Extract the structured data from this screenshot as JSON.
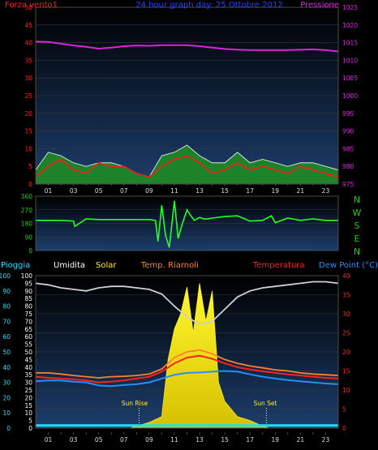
{
  "header": {
    "left_label": "Forza vento1",
    "title": "24 hour graph day:  25 Ottobre 2012",
    "right_label": "Pressione"
  },
  "wind_dir_labels": [
    "N",
    "W",
    "S",
    "E",
    "N"
  ],
  "legend": {
    "pioggia": "Pioggia",
    "umidita": "Umidita",
    "solar": "Solar",
    "temp_riarnoli": "Temp. Riarnoli",
    "temperatura": "Temperatura",
    "dew_point": "Dew Point (°C)"
  },
  "sun": {
    "rise_label": "Sun Rise",
    "set_label": "Sun Set"
  },
  "colors": {
    "wind_avg": "#ff1a1a",
    "gust_fill": "#1f8f1f",
    "pressure": "#e020e0",
    "wind_dir": "#22ff22",
    "humidity": "#d0d0d0",
    "solar": "#ffee22",
    "temp_riarnoli": "#ff8030",
    "temperatura": "#ff2020",
    "dew_point": "#2090ff",
    "rain": "#20e0ff",
    "pioggia_label": "#20e0ff",
    "umidita_label": "#ffffff",
    "solar_label": "#ffee22",
    "temp_riarnoli_label": "#ff8030",
    "temperatura_label": "#ff2020",
    "dew_label": "#2090ff"
  },
  "chart_data": [
    {
      "type": "line",
      "name": "wind_pressure",
      "title": "24 hour graph day:  25 Ottobre 2012",
      "x_ticks": [
        "01",
        "03",
        "05",
        "07",
        "09",
        "11",
        "13",
        "15",
        "17",
        "19",
        "21",
        "23"
      ],
      "y_left": {
        "label": "Forza vento1",
        "ticks": [
          0,
          5,
          10,
          15,
          20,
          25,
          30,
          35,
          40,
          45,
          50
        ],
        "ylim": [
          0,
          50
        ]
      },
      "y_right": {
        "label": "Pressione",
        "ticks": [
          975,
          980,
          985,
          990,
          995,
          1000,
          1005,
          1010,
          1015,
          1020,
          1025
        ],
        "ylim": [
          975,
          1025
        ]
      },
      "series": [
        {
          "key": "pressure",
          "axis": "right",
          "x": [
            0,
            1,
            2,
            3,
            4,
            5,
            6,
            7,
            8,
            9,
            10,
            11,
            12,
            13,
            14,
            15,
            16,
            17,
            18,
            19,
            20,
            21,
            22,
            23,
            24
          ],
          "values": [
            1015.3,
            1015.2,
            1014.7,
            1014.2,
            1013.8,
            1013.3,
            1013.6,
            1014.0,
            1014.2,
            1014.1,
            1014.3,
            1014.3,
            1014.3,
            1014.0,
            1013.6,
            1013.2,
            1013.0,
            1012.9,
            1012.9,
            1012.9,
            1012.9,
            1013.0,
            1013.1,
            1012.9,
            1012.5
          ]
        },
        {
          "key": "wind_avg",
          "axis": "left",
          "x": [
            0,
            1,
            2,
            3,
            4,
            5,
            6,
            7,
            8,
            9,
            10,
            11,
            12,
            13,
            14,
            15,
            16,
            17,
            18,
            19,
            20,
            21,
            22,
            23,
            24
          ],
          "values": [
            2,
            5,
            7,
            4,
            3,
            6,
            5,
            5,
            3,
            2,
            5,
            7,
            8,
            6,
            3,
            4,
            6,
            4,
            5,
            4,
            3,
            5,
            4,
            3,
            2
          ]
        },
        {
          "key": "wind_gust",
          "axis": "left",
          "x": [
            0,
            1,
            2,
            3,
            4,
            5,
            6,
            7,
            8,
            9,
            10,
            11,
            12,
            13,
            14,
            15,
            16,
            17,
            18,
            19,
            20,
            21,
            22,
            23,
            24
          ],
          "values": [
            4,
            9,
            8,
            6,
            5,
            6,
            6,
            5,
            3,
            2,
            8,
            9,
            11,
            8,
            6,
            6,
            9,
            6,
            7,
            6,
            5,
            6,
            6,
            5,
            4
          ]
        }
      ]
    },
    {
      "type": "line",
      "name": "wind_direction",
      "y_ticks": [
        0,
        90,
        180,
        270,
        360
      ],
      "ylim": [
        0,
        360
      ],
      "series": [
        {
          "key": "wind_dir",
          "x": [
            0,
            2,
            3,
            3.1,
            4,
            5,
            6,
            7,
            8,
            9,
            9.5,
            9.7,
            10,
            10.3,
            10.6,
            11,
            11.3,
            11.6,
            12,
            12.3,
            12.6,
            13,
            13.3,
            13.7,
            14,
            15,
            16,
            17,
            18,
            18.7,
            19,
            20,
            21,
            22,
            23,
            24
          ],
          "values": [
            200,
            200,
            195,
            160,
            210,
            205,
            205,
            205,
            205,
            205,
            200,
            60,
            300,
            100,
            20,
            330,
            80,
            170,
            270,
            230,
            200,
            220,
            210,
            210,
            215,
            225,
            230,
            195,
            200,
            230,
            185,
            215,
            200,
            210,
            200,
            200
          ]
        }
      ]
    },
    {
      "type": "line",
      "name": "temp_humidity_solar",
      "left_axis": {
        "label": "Pioggia",
        "ticks": [
          0,
          10,
          20,
          30,
          40,
          50,
          60,
          70,
          80,
          90,
          100
        ]
      },
      "hum_axis": {
        "label": "Umidita",
        "ticks": [
          0,
          5,
          10,
          15,
          20,
          25,
          30,
          35,
          40,
          45,
          50,
          55,
          60,
          65,
          70,
          75,
          80,
          85,
          90,
          95,
          100
        ]
      },
      "right_axis": {
        "label": "Dew Point (°C)",
        "ticks": [
          0,
          5,
          10,
          15,
          20,
          25,
          30,
          35,
          40
        ],
        "ylim": [
          0,
          40
        ]
      },
      "sun_rise_hour": 8.2,
      "sun_set_hour": 18.3,
      "series": [
        {
          "key": "humidity",
          "x": [
            0,
            1,
            2,
            3,
            4,
            5,
            6,
            7,
            8,
            9,
            10,
            11,
            12,
            13,
            14,
            15,
            16,
            17,
            18,
            19,
            20,
            21,
            22,
            23,
            24
          ],
          "values": [
            95,
            94,
            92,
            91,
            90,
            92,
            93,
            93,
            92,
            91,
            88,
            80,
            73,
            68,
            70,
            78,
            86,
            90,
            92,
            93,
            94,
            95,
            96,
            96,
            95
          ]
        },
        {
          "key": "temp_riarnoli",
          "x": [
            0,
            1,
            2,
            3,
            4,
            5,
            6,
            7,
            8,
            9,
            10,
            11,
            12,
            13,
            14,
            15,
            16,
            17,
            18,
            19,
            20,
            21,
            22,
            23,
            24
          ],
          "values": [
            14.5,
            14.5,
            14.2,
            13.8,
            13.5,
            13.2,
            13.5,
            13.6,
            13.8,
            14.2,
            15.5,
            18.5,
            20.0,
            20.5,
            19.5,
            18.0,
            17.0,
            16.3,
            15.8,
            15.3,
            15.0,
            14.5,
            14.2,
            14.0,
            13.8
          ]
        },
        {
          "key": "temperatura",
          "x": [
            0,
            1,
            2,
            3,
            4,
            5,
            6,
            7,
            8,
            9,
            10,
            11,
            12,
            13,
            14,
            15,
            16,
            17,
            18,
            19,
            20,
            21,
            22,
            23,
            24
          ],
          "values": [
            13.5,
            13.2,
            13.0,
            12.8,
            12.5,
            12.0,
            12.2,
            12.5,
            13.0,
            13.5,
            14.8,
            17.0,
            18.5,
            19.0,
            18.2,
            17.0,
            16.0,
            15.4,
            14.9,
            14.5,
            14.1,
            13.8,
            13.5,
            13.2,
            13.0
          ]
        },
        {
          "key": "dew_point",
          "x": [
            0,
            1,
            2,
            3,
            4,
            5,
            6,
            7,
            8,
            9,
            10,
            11,
            12,
            13,
            14,
            15,
            16,
            17,
            18,
            19,
            20,
            21,
            22,
            23,
            24
          ],
          "values": [
            12.3,
            12.5,
            12.5,
            12.2,
            12.0,
            11.2,
            11.0,
            11.3,
            11.5,
            12.0,
            13.0,
            14.0,
            14.5,
            14.6,
            14.8,
            15.0,
            14.8,
            14.1,
            13.5,
            13.0,
            12.6,
            12.3,
            12.0,
            11.7,
            11.5
          ]
        },
        {
          "key": "solar",
          "x": [
            7.5,
            8,
            9,
            10,
            10.5,
            11,
            11.5,
            12,
            12.5,
            13,
            13.5,
            14,
            14.5,
            15,
            15.5,
            16,
            17,
            18,
            18.5
          ],
          "values": [
            0,
            0.5,
            1.5,
            3,
            18,
            26,
            30,
            37,
            25,
            38,
            28,
            36,
            12,
            7,
            5,
            3,
            2,
            0.5,
            0
          ]
        },
        {
          "key": "rain",
          "x": [
            0,
            24
          ],
          "values": [
            0.7,
            0.7
          ]
        }
      ]
    }
  ]
}
